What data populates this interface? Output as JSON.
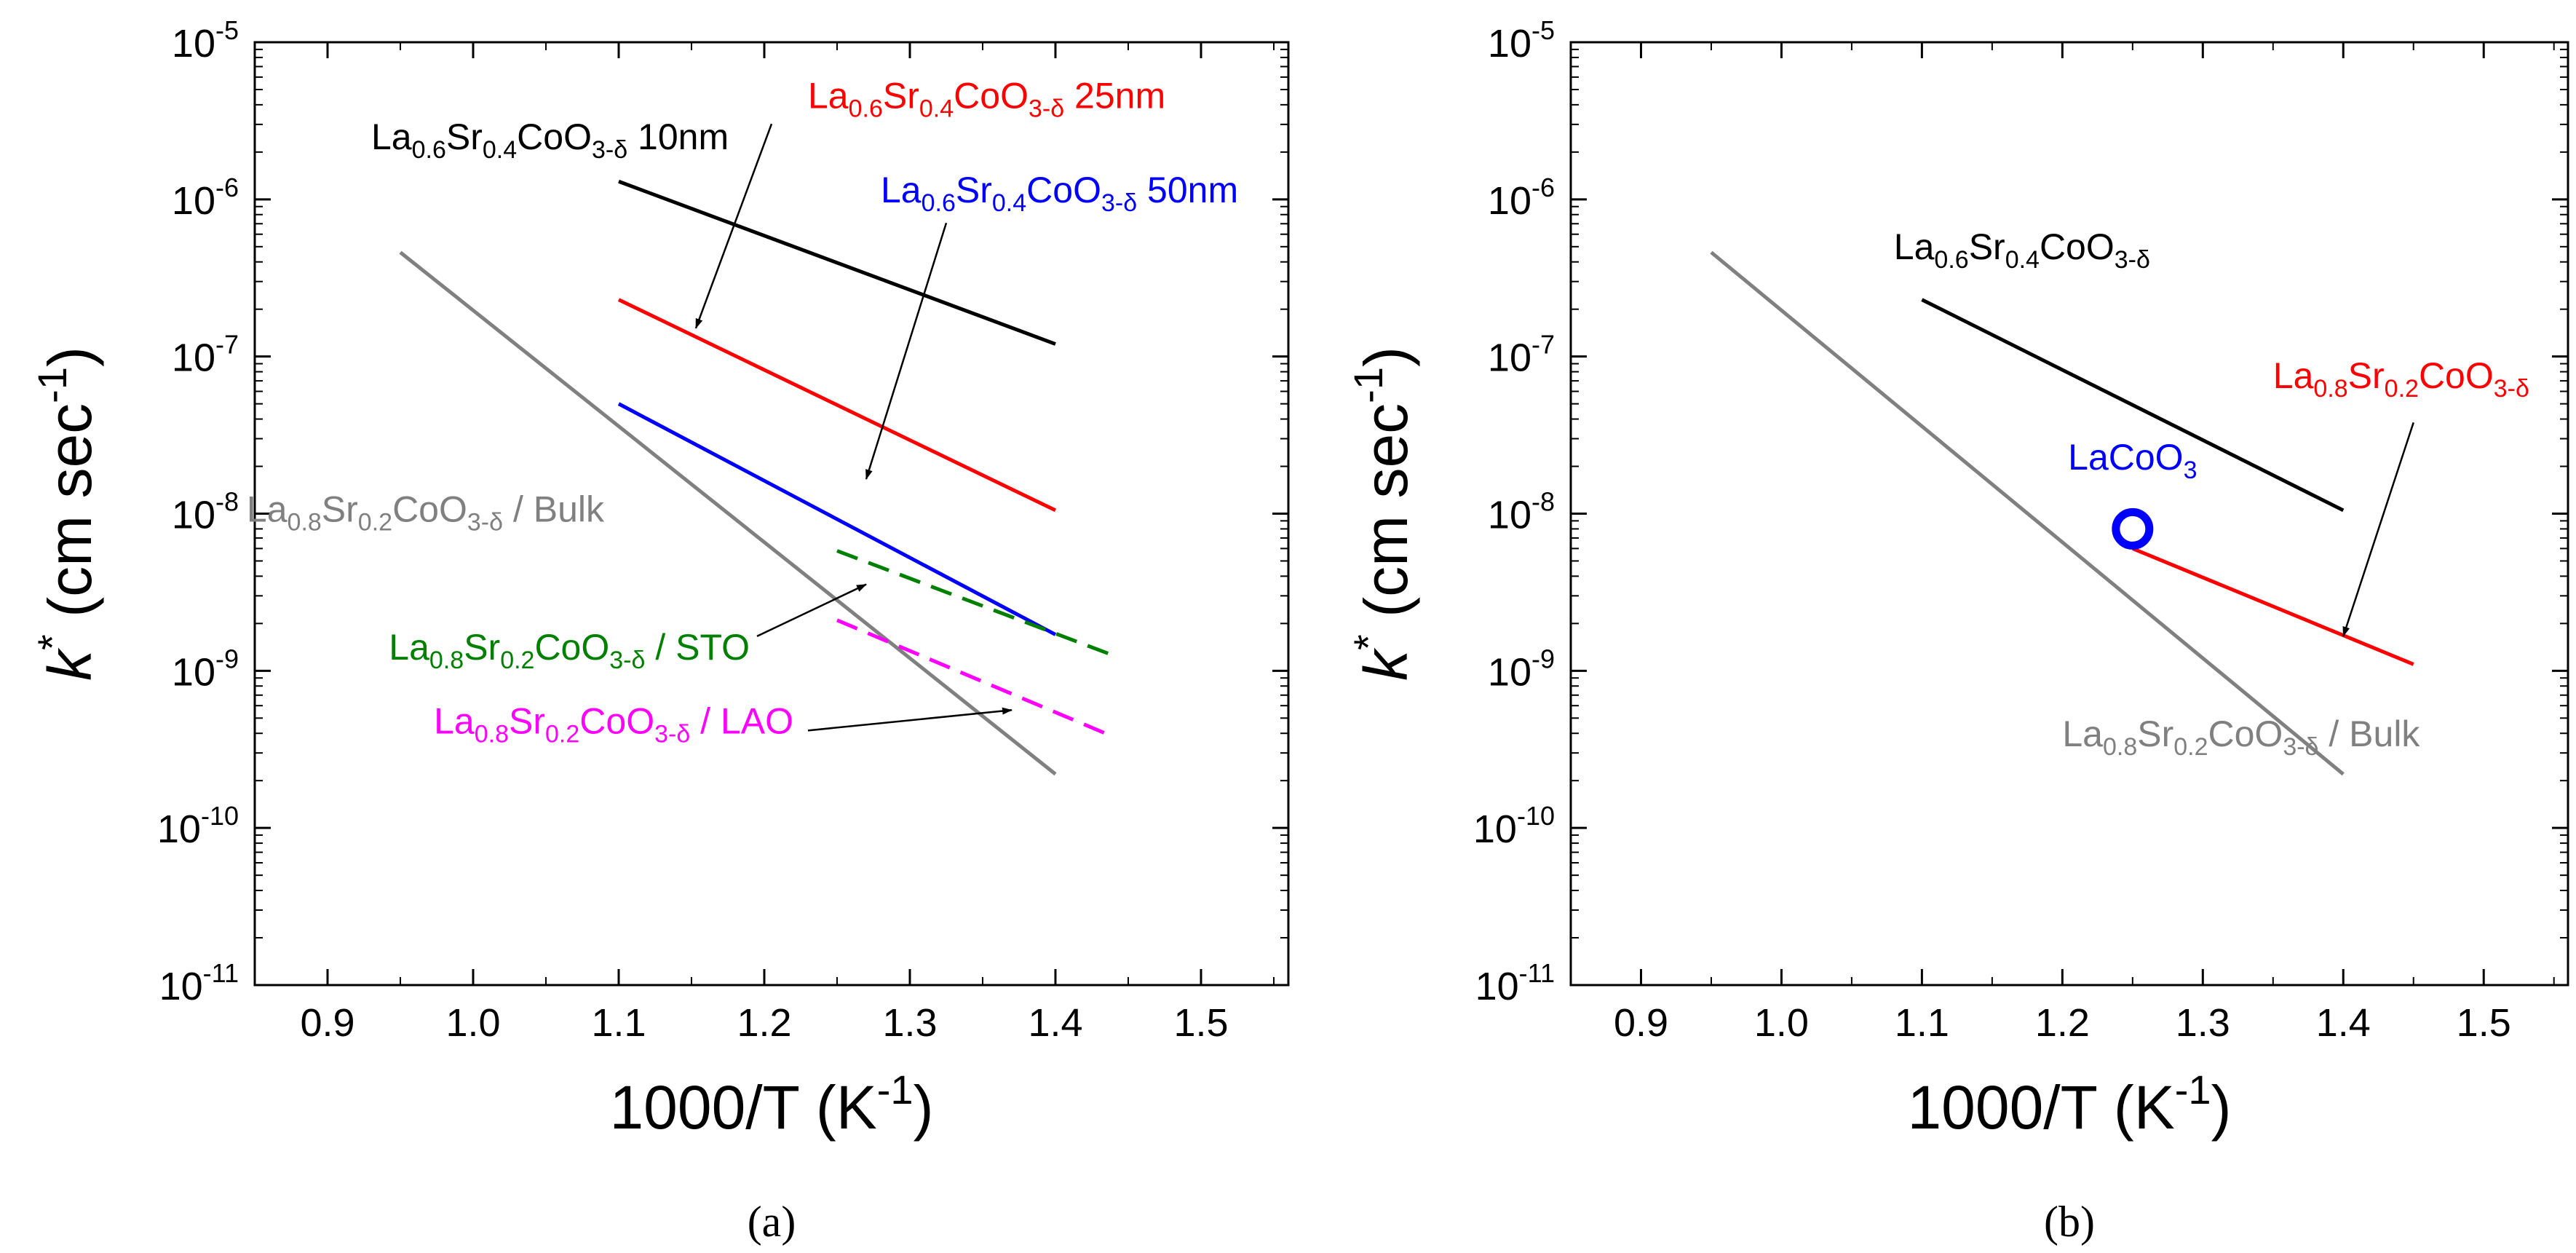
{
  "chart_data": [
    {
      "id": "a",
      "type": "line",
      "caption": "(a)",
      "xlabel": "1000/T (K",
      "xlabel_sup": "-1",
      "xlabel_tail": ")",
      "ylabel_sym": "k",
      "ylabel_sup": "*",
      "ylabel_unit": " (cm sec",
      "ylabel_unit_sup": "-1",
      "ylabel_tail": ")",
      "xlim": [
        0.85,
        1.56
      ],
      "ylim_log10": [
        -11,
        -5
      ],
      "xticks": [
        {
          "v": 0.9,
          "label": "0.9"
        },
        {
          "v": 1.0,
          "label": "1.0"
        },
        {
          "v": 1.1,
          "label": "1.1"
        },
        {
          "v": 1.2,
          "label": "1.2"
        },
        {
          "v": 1.3,
          "label": "1.3"
        },
        {
          "v": 1.4,
          "label": "1.4"
        },
        {
          "v": 1.5,
          "label": "1.5"
        }
      ],
      "yticks": [
        {
          "e": -5,
          "base": "10",
          "sup": "-5"
        },
        {
          "e": -6,
          "base": "10",
          "sup": "-6"
        },
        {
          "e": -7,
          "base": "10",
          "sup": "-7"
        },
        {
          "e": -8,
          "base": "10",
          "sup": "-8"
        },
        {
          "e": -9,
          "base": "10",
          "sup": "-9"
        },
        {
          "e": -10,
          "base": "10",
          "sup": "-10"
        },
        {
          "e": -11,
          "base": "10",
          "sup": "-11"
        }
      ],
      "series": [
        {
          "name": "La0.6Sr0.4CoO3-δ 10nm",
          "color": "#000000",
          "dash": false,
          "x": [
            1.1,
            1.4
          ],
          "y": [
            1.3e-06,
            1.2e-07
          ]
        },
        {
          "name": "La0.6Sr0.4CoO3-δ 25nm",
          "color": "#ff0000",
          "dash": false,
          "x": [
            1.1,
            1.4
          ],
          "y": [
            2.3e-07,
            1.05e-08
          ]
        },
        {
          "name": "La0.6Sr0.4CoO3-δ 50nm",
          "color": "#0000ff",
          "dash": false,
          "x": [
            1.1,
            1.4
          ],
          "y": [
            5e-08,
            1.7e-09
          ]
        },
        {
          "name": "La0.8Sr0.2CoO3-δ / Bulk",
          "color": "#808080",
          "dash": false,
          "x": [
            0.95,
            1.4
          ],
          "y": [
            4.6e-07,
            2.2e-10
          ]
        },
        {
          "name": "La0.8Sr0.2CoO3-δ / STO",
          "color": "#008000",
          "dash": true,
          "x": [
            1.25,
            1.44
          ],
          "y": [
            5.8e-09,
            1.25e-09
          ]
        },
        {
          "name": "La0.8Sr0.2CoO3-δ / LAO",
          "color": "#ff00ff",
          "dash": true,
          "x": [
            1.25,
            1.44
          ],
          "y": [
            2.1e-09,
            3.8e-10
          ]
        }
      ],
      "labels": [
        {
          "key": "lsc10",
          "color": "#000000",
          "parts": [
            [
              "La",
              ""
            ],
            [
              "0.6",
              "sub"
            ],
            [
              "Sr",
              ""
            ],
            [
              "0.4",
              "sub"
            ],
            [
              "CoO",
              ""
            ],
            [
              "3-δ",
              "sub"
            ],
            [
              " 10nm",
              ""
            ]
          ],
          "at": [
            0.93,
            -5.68
          ],
          "anchor": "start"
        },
        {
          "key": "lsc25",
          "color": "#ff0000",
          "parts": [
            [
              "La",
              ""
            ],
            [
              "0.6",
              "sub"
            ],
            [
              "Sr",
              ""
            ],
            [
              "0.4",
              "sub"
            ],
            [
              "CoO",
              ""
            ],
            [
              "3-δ",
              "sub"
            ],
            [
              " 25nm",
              ""
            ]
          ],
          "at": [
            1.23,
            -5.42
          ],
          "anchor": "start"
        },
        {
          "key": "lsc50",
          "color": "#0000ff",
          "parts": [
            [
              "La",
              ""
            ],
            [
              "0.6",
              "sub"
            ],
            [
              "Sr",
              ""
            ],
            [
              "0.4",
              "sub"
            ],
            [
              "CoO",
              ""
            ],
            [
              "3-δ",
              "sub"
            ],
            [
              " 50nm",
              ""
            ]
          ],
          "at": [
            1.28,
            -6.02
          ],
          "anchor": "start"
        },
        {
          "key": "bulk",
          "color": "#808080",
          "parts": [
            [
              "La",
              ""
            ],
            [
              "0.8",
              "sub"
            ],
            [
              "Sr",
              ""
            ],
            [
              "0.2",
              "sub"
            ],
            [
              "CoO",
              ""
            ],
            [
              "3-δ",
              "sub"
            ],
            [
              " / Bulk",
              ""
            ]
          ],
          "at": [
            1.09,
            -8.05
          ],
          "anchor": "end"
        },
        {
          "key": "sto",
          "color": "#008000",
          "parts": [
            [
              "La",
              ""
            ],
            [
              "0.8",
              "sub"
            ],
            [
              "Sr",
              ""
            ],
            [
              "0.2",
              "sub"
            ],
            [
              "CoO",
              ""
            ],
            [
              "3-δ",
              "sub"
            ],
            [
              " / STO",
              ""
            ]
          ],
          "at": [
            1.19,
            -8.93
          ],
          "anchor": "end"
        },
        {
          "key": "lao",
          "color": "#ff00ff",
          "parts": [
            [
              "La",
              ""
            ],
            [
              "0.8",
              "sub"
            ],
            [
              "Sr",
              ""
            ],
            [
              "0.2",
              "sub"
            ],
            [
              "CoO",
              ""
            ],
            [
              "3-δ",
              "sub"
            ],
            [
              " / LAO",
              ""
            ]
          ],
          "at": [
            1.22,
            -9.4
          ],
          "anchor": "end"
        }
      ],
      "arrows": [
        {
          "from": [
            1.205,
            -5.52
          ],
          "to": [
            1.153,
            -6.82
          ]
        },
        {
          "from": [
            1.325,
            -6.15
          ],
          "to": [
            1.27,
            -7.78
          ]
        },
        {
          "from": [
            1.195,
            -8.78
          ],
          "to": [
            1.27,
            -8.45
          ]
        },
        {
          "from": [
            1.23,
            -9.38
          ],
          "to": [
            1.37,
            -9.25
          ]
        }
      ],
      "markers": []
    },
    {
      "id": "b",
      "type": "line",
      "caption": "(b)",
      "xlabel": "1000/T (K",
      "xlabel_sup": "-1",
      "xlabel_tail": ")",
      "ylabel_sym": "k",
      "ylabel_sup": "*",
      "ylabel_unit": " (cm sec",
      "ylabel_unit_sup": "-1",
      "ylabel_tail": ")",
      "xlim": [
        0.85,
        1.56
      ],
      "ylim_log10": [
        -11,
        -5
      ],
      "xticks": [
        {
          "v": 0.9,
          "label": "0.9"
        },
        {
          "v": 1.0,
          "label": "1.0"
        },
        {
          "v": 1.1,
          "label": "1.1"
        },
        {
          "v": 1.2,
          "label": "1.2"
        },
        {
          "v": 1.3,
          "label": "1.3"
        },
        {
          "v": 1.4,
          "label": "1.4"
        },
        {
          "v": 1.5,
          "label": "1.5"
        }
      ],
      "yticks": [
        {
          "e": -5,
          "base": "10",
          "sup": "-5"
        },
        {
          "e": -6,
          "base": "10",
          "sup": "-6"
        },
        {
          "e": -7,
          "base": "10",
          "sup": "-7"
        },
        {
          "e": -8,
          "base": "10",
          "sup": "-8"
        },
        {
          "e": -9,
          "base": "10",
          "sup": "-9"
        },
        {
          "e": -10,
          "base": "10",
          "sup": "-10"
        },
        {
          "e": -11,
          "base": "10",
          "sup": "-11"
        }
      ],
      "series": [
        {
          "name": "La0.6Sr0.4CoO3-δ",
          "color": "#000000",
          "dash": false,
          "x": [
            1.1,
            1.4
          ],
          "y": [
            2.3e-07,
            1.05e-08
          ]
        },
        {
          "name": "La0.8Sr0.2CoO3-δ",
          "color": "#ff0000",
          "dash": false,
          "x": [
            1.25,
            1.45
          ],
          "y": [
            6e-09,
            1.1e-09
          ]
        },
        {
          "name": "La0.8Sr0.2CoO3-δ / Bulk",
          "color": "#808080",
          "dash": false,
          "x": [
            0.95,
            1.4
          ],
          "y": [
            4.6e-07,
            2.2e-10
          ]
        }
      ],
      "labels": [
        {
          "key": "lsc64",
          "color": "#000000",
          "parts": [
            [
              "La",
              ""
            ],
            [
              "0.6",
              "sub"
            ],
            [
              "Sr",
              ""
            ],
            [
              "0.4",
              "sub"
            ],
            [
              "CoO",
              ""
            ],
            [
              "3-δ",
              "sub"
            ]
          ],
          "at": [
            1.08,
            -6.38
          ],
          "anchor": "start"
        },
        {
          "key": "lsc82",
          "color": "#ff0000",
          "parts": [
            [
              "La",
              ""
            ],
            [
              "0.8",
              "sub"
            ],
            [
              "Sr",
              ""
            ],
            [
              "0.2",
              "sub"
            ],
            [
              "CoO",
              ""
            ],
            [
              "3-δ",
              "sub"
            ]
          ],
          "at": [
            1.35,
            -7.2
          ],
          "anchor": "start"
        },
        {
          "key": "lacoo3",
          "color": "#0000ff",
          "parts": [
            [
              "LaCoO",
              ""
            ],
            [
              "3",
              "sub"
            ]
          ],
          "at": [
            1.25,
            -7.72
          ],
          "anchor": "middle"
        },
        {
          "key": "bulk_b",
          "color": "#808080",
          "parts": [
            [
              "La",
              ""
            ],
            [
              "0.8",
              "sub"
            ],
            [
              "Sr",
              ""
            ],
            [
              "0.2",
              "sub"
            ],
            [
              "CoO",
              ""
            ],
            [
              "3-δ",
              "sub"
            ],
            [
              " / Bulk",
              ""
            ]
          ],
          "at": [
            1.2,
            -9.48
          ],
          "anchor": "start"
        }
      ],
      "arrows": [
        {
          "from": [
            1.45,
            -7.42
          ],
          "to": [
            1.4,
            -8.78
          ]
        }
      ],
      "markers": [
        {
          "name": "LaCoO3",
          "shape": "circle",
          "color": "#0000ff",
          "x": 1.25,
          "y": 8e-09
        }
      ]
    }
  ]
}
